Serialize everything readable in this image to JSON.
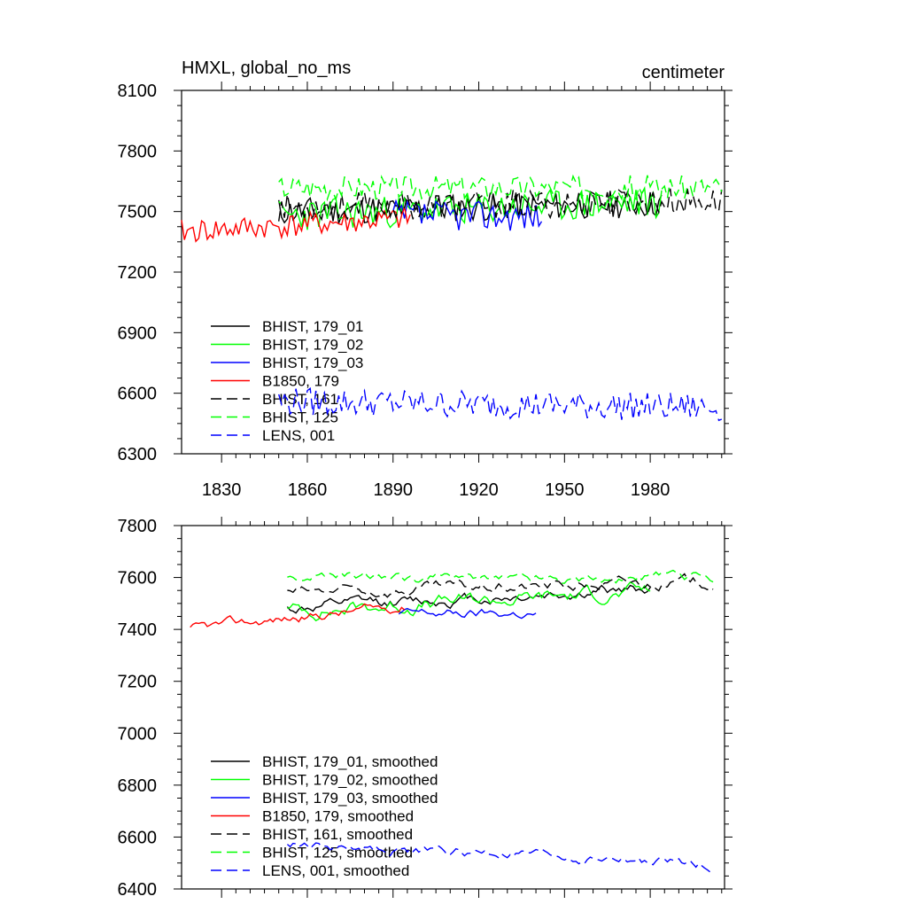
{
  "chart_data": [
    {
      "type": "line",
      "title_left": "HMXL, global_no_ms",
      "title_right": "centimeter",
      "xlim": [
        1816,
        2006
      ],
      "ylim": [
        6300,
        8100
      ],
      "x_ticks": [
        1830,
        1860,
        1890,
        1920,
        1950,
        1980
      ],
      "x_tick_labels": [
        "1830",
        "1860",
        "1890",
        "1920",
        "1950",
        "1980"
      ],
      "y_ticks": [
        6300,
        6600,
        6900,
        7200,
        7500,
        7800,
        8100
      ],
      "y_tick_labels": [
        "6300",
        "6600",
        "6900",
        "7200",
        "7500",
        "7800",
        "8100"
      ],
      "legend_position": "lower-left",
      "series": [
        {
          "name": "BHIST, 179_01",
          "color": "#000000",
          "dash": "solid",
          "x_start": 1850,
          "x_end": 1984,
          "mean": 7500,
          "amp": 70,
          "seed": 11,
          "trend": 0.3
        },
        {
          "name": "BHIST, 179_02",
          "color": "#00ff00",
          "dash": "solid",
          "x_start": 1850,
          "x_end": 1984,
          "mean": 7480,
          "amp": 80,
          "seed": 23,
          "trend": 0.5
        },
        {
          "name": "BHIST, 179_03",
          "color": "#0000ff",
          "dash": "solid",
          "x_start": 1890,
          "x_end": 1942,
          "mean": 7480,
          "amp": 75,
          "seed": 37,
          "trend": 0
        },
        {
          "name": "B1850, 179",
          "color": "#ff0000",
          "dash": "solid",
          "x_start": 1816,
          "x_end": 1896,
          "mean": 7400,
          "amp": 60,
          "seed": 41,
          "trend": 0.8
        },
        {
          "name": "BHIST, 161",
          "color": "#000000",
          "dash": "dashed",
          "x_start": 1850,
          "x_end": 2005,
          "mean": 7520,
          "amp": 70,
          "seed": 53,
          "trend": 0.2
        },
        {
          "name": "BHIST, 125",
          "color": "#00ff00",
          "dash": "dashed",
          "x_start": 1850,
          "x_end": 2005,
          "mean": 7620,
          "amp": 60,
          "seed": 67,
          "trend": 0
        },
        {
          "name": "LENS, 001",
          "color": "#0000ff",
          "dash": "dashed",
          "x_start": 1850,
          "x_end": 2005,
          "mean": 6560,
          "amp": 70,
          "seed": 79,
          "trend": -0.2
        }
      ]
    },
    {
      "type": "line",
      "xlim": [
        1816,
        2006
      ],
      "ylim": [
        6400,
        7800
      ],
      "x_ticks": [
        1830,
        1860,
        1890,
        1920,
        1950,
        1980
      ],
      "y_ticks": [
        6400,
        6600,
        6800,
        7000,
        7200,
        7400,
        7600,
        7800
      ],
      "y_tick_labels": [
        "6400",
        "6600",
        "6800",
        "7000",
        "7200",
        "7400",
        "7600",
        "7800"
      ],
      "legend_position": "lower-left",
      "series": [
        {
          "name": "BHIST, 179_01, smoothed",
          "color": "#000000",
          "dash": "solid",
          "x_start": 1853,
          "x_end": 1980,
          "mean": 7480,
          "amp": 35,
          "seed": 12,
          "trend": 0.6
        },
        {
          "name": "BHIST, 179_02, smoothed",
          "color": "#00ff00",
          "dash": "solid",
          "x_start": 1853,
          "x_end": 1980,
          "mean": 7470,
          "amp": 45,
          "seed": 24,
          "trend": 0.6
        },
        {
          "name": "BHIST, 179_03, smoothed",
          "color": "#0000ff",
          "dash": "solid",
          "x_start": 1892,
          "x_end": 1940,
          "mean": 7460,
          "amp": 30,
          "seed": 38,
          "trend": 0
        },
        {
          "name": "B1850, 179, smoothed",
          "color": "#ff0000",
          "dash": "solid",
          "x_start": 1819,
          "x_end": 1894,
          "mean": 7400,
          "amp": 30,
          "seed": 42,
          "trend": 1.2
        },
        {
          "name": "BHIST, 161, smoothed",
          "color": "#000000",
          "dash": "dashed",
          "x_start": 1853,
          "x_end": 2002,
          "mean": 7540,
          "amp": 35,
          "seed": 54,
          "trend": 0.3
        },
        {
          "name": "BHIST, 125, smoothed",
          "color": "#00ff00",
          "dash": "dashed",
          "x_start": 1853,
          "x_end": 2002,
          "mean": 7600,
          "amp": 30,
          "seed": 68,
          "trend": 0
        },
        {
          "name": "LENS, 001, smoothed",
          "color": "#0000ff",
          "dash": "dashed",
          "x_start": 1853,
          "x_end": 2002,
          "mean": 6570,
          "amp": 30,
          "seed": 80,
          "trend": -0.5
        }
      ]
    }
  ]
}
